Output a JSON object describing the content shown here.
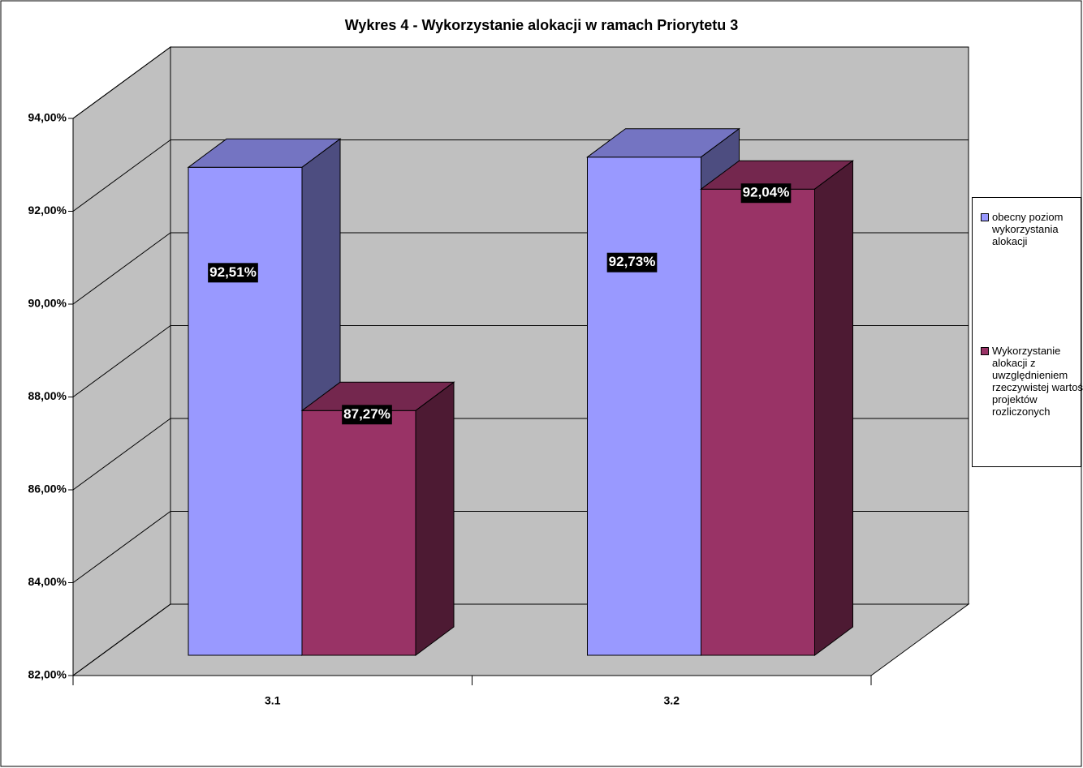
{
  "chart_data": {
    "type": "bar3d",
    "title": "Wykres 4 - Wykorzystanie alokacji w ramach Priorytetu 3",
    "categories": [
      "3.1",
      "3.2"
    ],
    "series": [
      {
        "name": "obecny poziom wykorzystania alokacji",
        "color": "#9999ff",
        "values": [
          92.51,
          92.73
        ],
        "value_labels": [
          "92,51%",
          "92,73%"
        ]
      },
      {
        "name": "Wykorzystanie alokacji z uwzględnieniem rzeczywistej wartości projektów rozliczonych",
        "color": "#993366",
        "values": [
          87.27,
          92.04
        ],
        "value_labels": [
          "87,27%",
          "92,04%"
        ]
      }
    ],
    "ylim": [
      82,
      94
    ],
    "yticks": [
      {
        "value": 82,
        "label": "82,00%"
      },
      {
        "value": 84,
        "label": "84,00%"
      },
      {
        "value": 86,
        "label": "86,00%"
      },
      {
        "value": 88,
        "label": "88,00%"
      },
      {
        "value": 90,
        "label": "90,00%"
      },
      {
        "value": 92,
        "label": "92,00%"
      },
      {
        "value": 94,
        "label": "94,00%"
      }
    ],
    "grid": true,
    "legend": "right"
  }
}
